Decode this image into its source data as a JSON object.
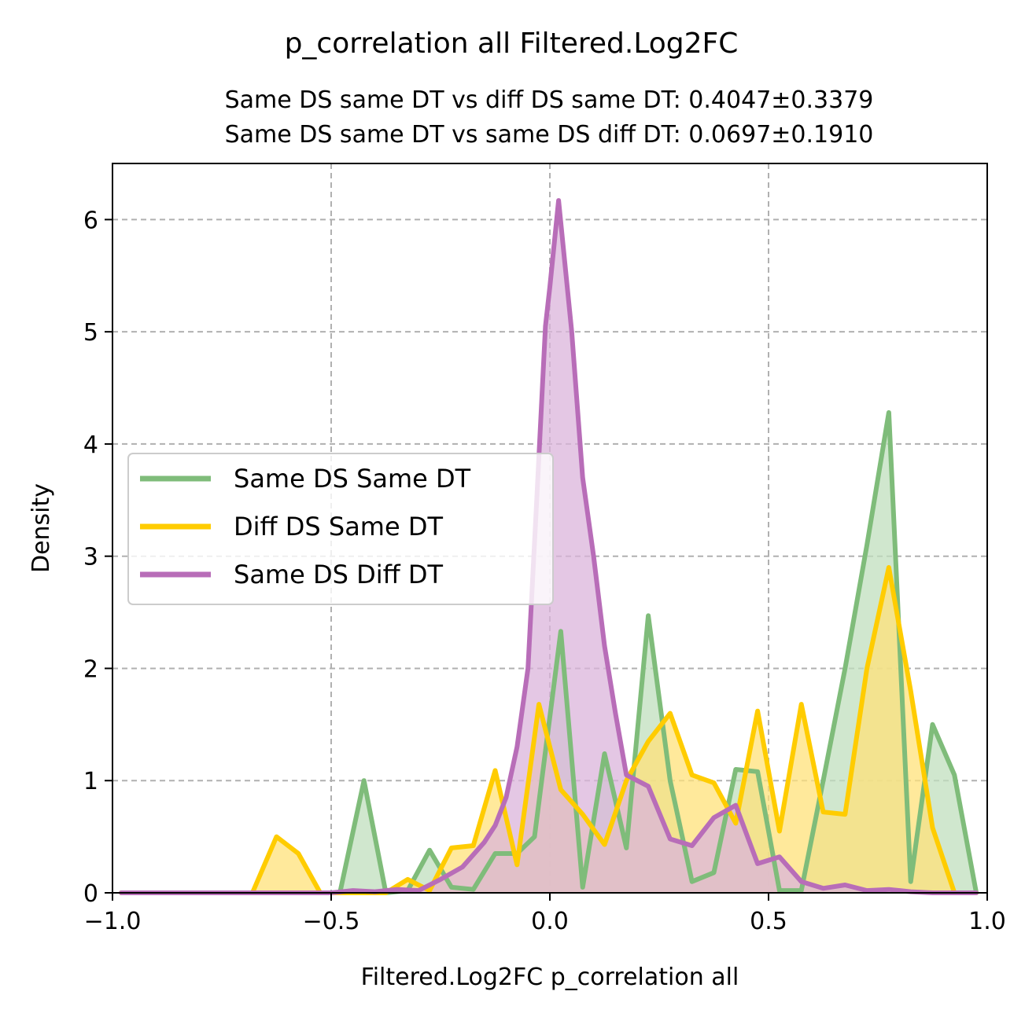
{
  "chart_data": {
    "type": "area",
    "title": "p_correlation all Filtered.Log2FC",
    "subtitle_lines": [
      "Same DS same DT vs diff DS same DT: 0.4047±0.3379",
      "Same DS same DT vs same DS diff DT: 0.0697±0.1910"
    ],
    "xlabel": "Filtered.Log2FC p_correlation all",
    "ylabel": "Density",
    "xlim": [
      -1.0,
      1.0
    ],
    "ylim": [
      0,
      6.5
    ],
    "xticks": [
      -1.0,
      -0.5,
      0.0,
      0.5,
      1.0
    ],
    "xtick_labels": [
      "−1.0",
      "−0.5",
      "0.0",
      "0.5",
      "1.0"
    ],
    "yticks": [
      0,
      1,
      2,
      3,
      4,
      5,
      6
    ],
    "ytick_labels": [
      "0",
      "1",
      "2",
      "3",
      "4",
      "5",
      "6"
    ],
    "grid": true,
    "legend_position": "center-left",
    "series": [
      {
        "name": "Same DS Same DT",
        "color": "#7fbc7a",
        "fill": "#c0dfbe",
        "points": [
          [
            -0.98,
            0
          ],
          [
            -0.48,
            0
          ],
          [
            -0.425,
            1.0
          ],
          [
            -0.375,
            0
          ],
          [
            -0.325,
            0.02
          ],
          [
            -0.275,
            0.38
          ],
          [
            -0.225,
            0.05
          ],
          [
            -0.175,
            0.03
          ],
          [
            -0.125,
            0.35
          ],
          [
            -0.075,
            0.35
          ],
          [
            -0.035,
            0.5
          ],
          [
            0.025,
            2.33
          ],
          [
            0.075,
            0.05
          ],
          [
            0.125,
            1.24
          ],
          [
            0.175,
            0.4
          ],
          [
            0.225,
            2.47
          ],
          [
            0.275,
            1.0
          ],
          [
            0.325,
            0.1
          ],
          [
            0.375,
            0.18
          ],
          [
            0.425,
            1.1
          ],
          [
            0.475,
            1.08
          ],
          [
            0.525,
            0.02
          ],
          [
            0.575,
            0.02
          ],
          [
            0.625,
            1.0
          ],
          [
            0.675,
            2.0
          ],
          [
            0.725,
            3.1
          ],
          [
            0.775,
            4.28
          ],
          [
            0.825,
            0.1
          ],
          [
            0.875,
            1.5
          ],
          [
            0.925,
            1.05
          ],
          [
            0.975,
            0
          ]
        ]
      },
      {
        "name": "Diff DS Same DT",
        "color": "#ffcc00",
        "fill": "#ffe27a",
        "points": [
          [
            -0.98,
            0
          ],
          [
            -0.68,
            0
          ],
          [
            -0.625,
            0.5
          ],
          [
            -0.575,
            0.35
          ],
          [
            -0.525,
            0
          ],
          [
            -0.375,
            0
          ],
          [
            -0.325,
            0.12
          ],
          [
            -0.275,
            0.02
          ],
          [
            -0.225,
            0.4
          ],
          [
            -0.175,
            0.42
          ],
          [
            -0.125,
            1.09
          ],
          [
            -0.075,
            0.25
          ],
          [
            -0.025,
            1.68
          ],
          [
            0.025,
            0.92
          ],
          [
            0.075,
            0.7
          ],
          [
            0.125,
            0.43
          ],
          [
            0.175,
            1.0
          ],
          [
            0.225,
            1.35
          ],
          [
            0.275,
            1.6
          ],
          [
            0.325,
            1.05
          ],
          [
            0.375,
            0.98
          ],
          [
            0.425,
            0.62
          ],
          [
            0.475,
            1.62
          ],
          [
            0.525,
            0.55
          ],
          [
            0.575,
            1.68
          ],
          [
            0.625,
            0.72
          ],
          [
            0.675,
            0.7
          ],
          [
            0.725,
            2.0
          ],
          [
            0.775,
            2.9
          ],
          [
            0.825,
            1.8
          ],
          [
            0.875,
            0.58
          ],
          [
            0.925,
            0
          ],
          [
            0.975,
            0
          ]
        ]
      },
      {
        "name": "Same DS Diff DT",
        "color": "#b86db8",
        "fill": "#dbb4db",
        "points": [
          [
            -0.98,
            0
          ],
          [
            -0.5,
            0
          ],
          [
            -0.45,
            0.02
          ],
          [
            -0.4,
            0.01
          ],
          [
            -0.35,
            0.03
          ],
          [
            -0.3,
            0.02
          ],
          [
            -0.25,
            0.12
          ],
          [
            -0.2,
            0.23
          ],
          [
            -0.15,
            0.45
          ],
          [
            -0.125,
            0.6
          ],
          [
            -0.1,
            0.85
          ],
          [
            -0.075,
            1.3
          ],
          [
            -0.05,
            2.0
          ],
          [
            -0.03,
            3.5
          ],
          [
            -0.01,
            5.05
          ],
          [
            0.0,
            5.4
          ],
          [
            0.02,
            6.17
          ],
          [
            0.05,
            5.0
          ],
          [
            0.075,
            3.7
          ],
          [
            0.1,
            3.0
          ],
          [
            0.125,
            2.2
          ],
          [
            0.15,
            1.6
          ],
          [
            0.175,
            1.05
          ],
          [
            0.225,
            0.95
          ],
          [
            0.275,
            0.48
          ],
          [
            0.325,
            0.42
          ],
          [
            0.375,
            0.67
          ],
          [
            0.425,
            0.78
          ],
          [
            0.475,
            0.26
          ],
          [
            0.525,
            0.32
          ],
          [
            0.575,
            0.1
          ],
          [
            0.625,
            0.04
          ],
          [
            0.675,
            0.07
          ],
          [
            0.725,
            0.02
          ],
          [
            0.775,
            0.03
          ],
          [
            0.825,
            0.01
          ],
          [
            0.875,
            0
          ],
          [
            0.975,
            0
          ]
        ]
      }
    ]
  }
}
